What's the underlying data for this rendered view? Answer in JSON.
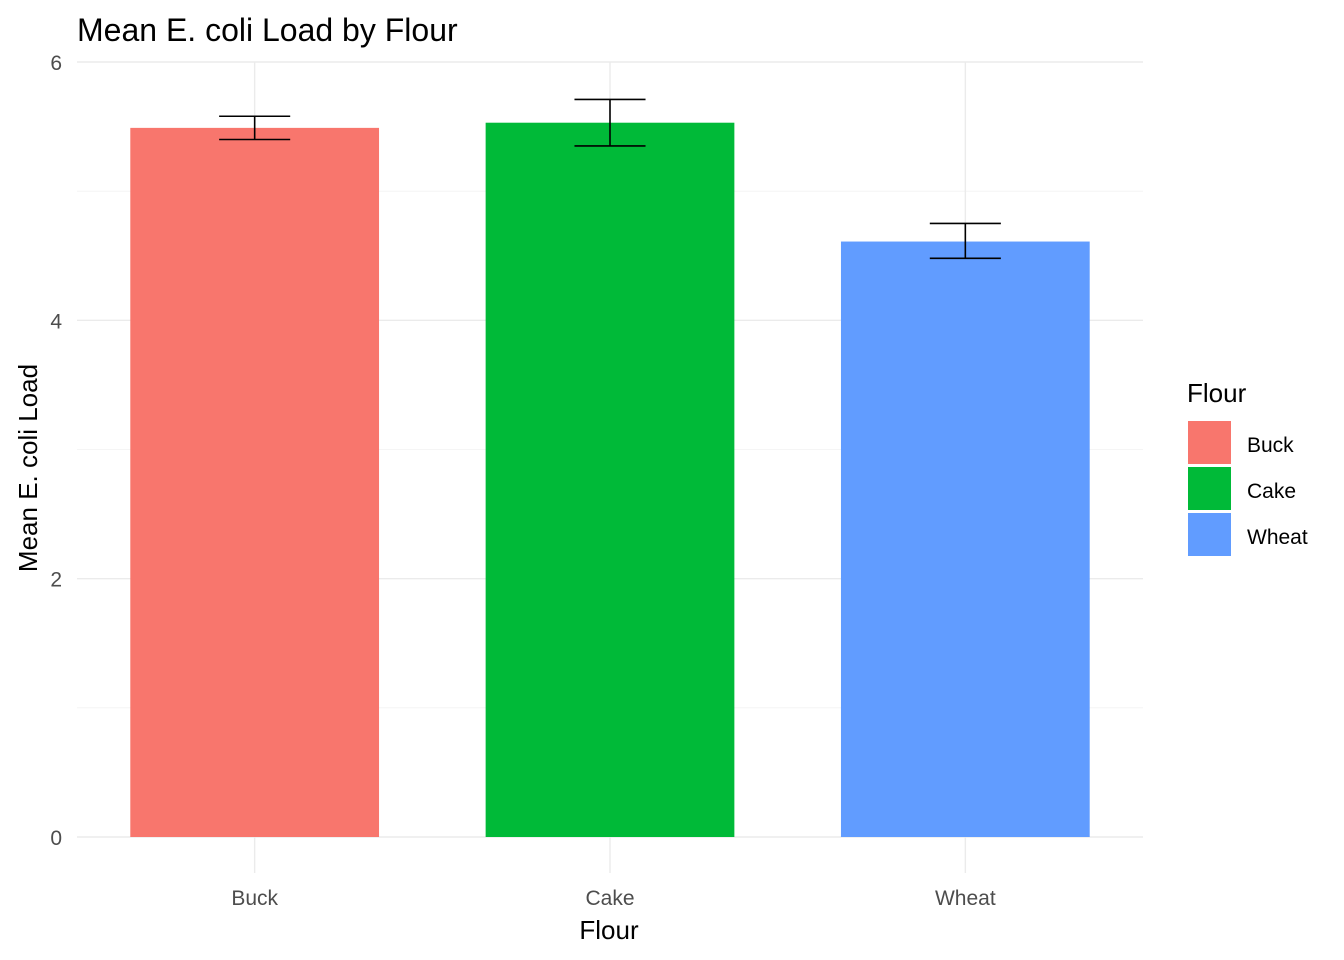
{
  "chart_data": {
    "type": "bar",
    "title": "Mean E. coli Load by Flour",
    "xlabel": "Flour",
    "ylabel": "Mean E. coli Load",
    "categories": [
      "Buck",
      "Cake",
      "Wheat"
    ],
    "values": [
      5.49,
      5.53,
      4.61
    ],
    "error_low": [
      5.4,
      5.35,
      4.48
    ],
    "error_high": [
      5.58,
      5.71,
      4.75
    ],
    "colors": [
      "#F8766D",
      "#00BA38",
      "#619CFF"
    ],
    "ylim": [
      0,
      6
    ],
    "yticks": [
      0,
      2,
      4,
      6
    ],
    "grid": true,
    "legend": {
      "title": "Flour",
      "position": "right",
      "entries": [
        "Buck",
        "Cake",
        "Wheat"
      ]
    }
  }
}
